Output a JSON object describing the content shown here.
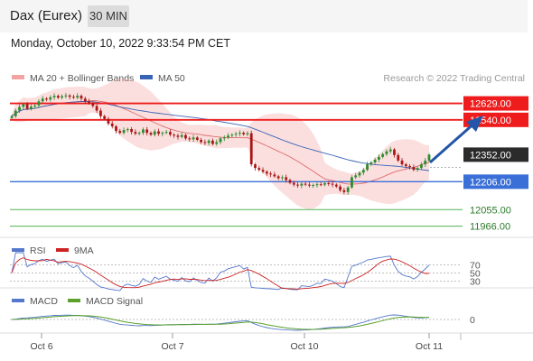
{
  "header": {
    "title": "Dax (Eurex)",
    "period": "30 MIN",
    "datetime": "Monday, October 10, 2022 9:33:54 PM CET"
  },
  "chart_data": {
    "type": "candlestick",
    "instrument": "Dax (Eurex)",
    "timeframe": "30 MIN",
    "legend": {
      "ma": "MA 20 + Bollinger Bands",
      "ma50": "MA 50",
      "research": "Research © 2022 Trading Central"
    },
    "colors": {
      "up": "#2f8a2f",
      "down": "#aa1616",
      "bollinger": "#f4a3a3",
      "ma20": "#e06a6a",
      "ma50": "#3a63b5",
      "resistance": "#ee1c1c",
      "pivot": "#3a6fd8",
      "support": "#55b055",
      "rsi": "#5577cc",
      "rsi_ma": "#cc2222",
      "macd": "#5577cc",
      "macd_signal": "#5aa02a",
      "arrow": "#2356a8"
    },
    "price_range": [
      11920,
      12700
    ],
    "x_ticks": [
      "Oct 6",
      "Oct 7",
      "Oct 10",
      "Oct 11"
    ],
    "levels": [
      {
        "value": 12629.0,
        "label": "12629.00",
        "kind": "resistance"
      },
      {
        "value": 12540.0,
        "label": "12540.00",
        "kind": "resistance"
      },
      {
        "value": 12352.0,
        "label": "12352.00",
        "kind": "last"
      },
      {
        "value": 12206.0,
        "label": "12206.00",
        "kind": "pivot"
      },
      {
        "value": 12055.0,
        "label": "12055.00",
        "kind": "support"
      },
      {
        "value": 11966.0,
        "label": "11966.00",
        "kind": "support"
      }
    ],
    "close": [
      12560,
      12590,
      12610,
      12625,
      12600,
      12612,
      12618,
      12640,
      12655,
      12650,
      12662,
      12670,
      12660,
      12668,
      12672,
      12665,
      12660,
      12670,
      12655,
      12640,
      12630,
      12615,
      12590,
      12560,
      12545,
      12520,
      12505,
      12480,
      12470,
      12485,
      12490,
      12475,
      12465,
      12470,
      12488,
      12470,
      12460,
      12478,
      12465,
      12470,
      12475,
      12460,
      12455,
      12448,
      12458,
      12440,
      12435,
      12445,
      12432,
      12420,
      12415,
      12428,
      12410,
      12420,
      12440,
      12445,
      12455,
      12460,
      12465,
      12470,
      12462,
      12468,
      12300,
      12280,
      12270,
      12260,
      12250,
      12245,
      12235,
      12225,
      12230,
      12215,
      12200,
      12190,
      12185,
      12195,
      12190,
      12185,
      12188,
      12192,
      12190,
      12198,
      12195,
      12190,
      12180,
      12160,
      12150,
      12175,
      12230,
      12240,
      12255,
      12270,
      12300,
      12310,
      12325,
      12340,
      12355,
      12370,
      12380,
      12350,
      12320,
      12300,
      12290,
      12285,
      12270,
      12280,
      12300,
      12320,
      12352
    ],
    "rsi": {
      "levels": [
        70,
        50,
        30
      ]
    },
    "macd": {
      "zero_label": "0"
    },
    "indicators": {
      "rsi": {
        "label": "RSI",
        "ma_label": "9MA"
      },
      "macd": {
        "label": "MACD",
        "signal_label": "MACD Signal"
      }
    }
  }
}
